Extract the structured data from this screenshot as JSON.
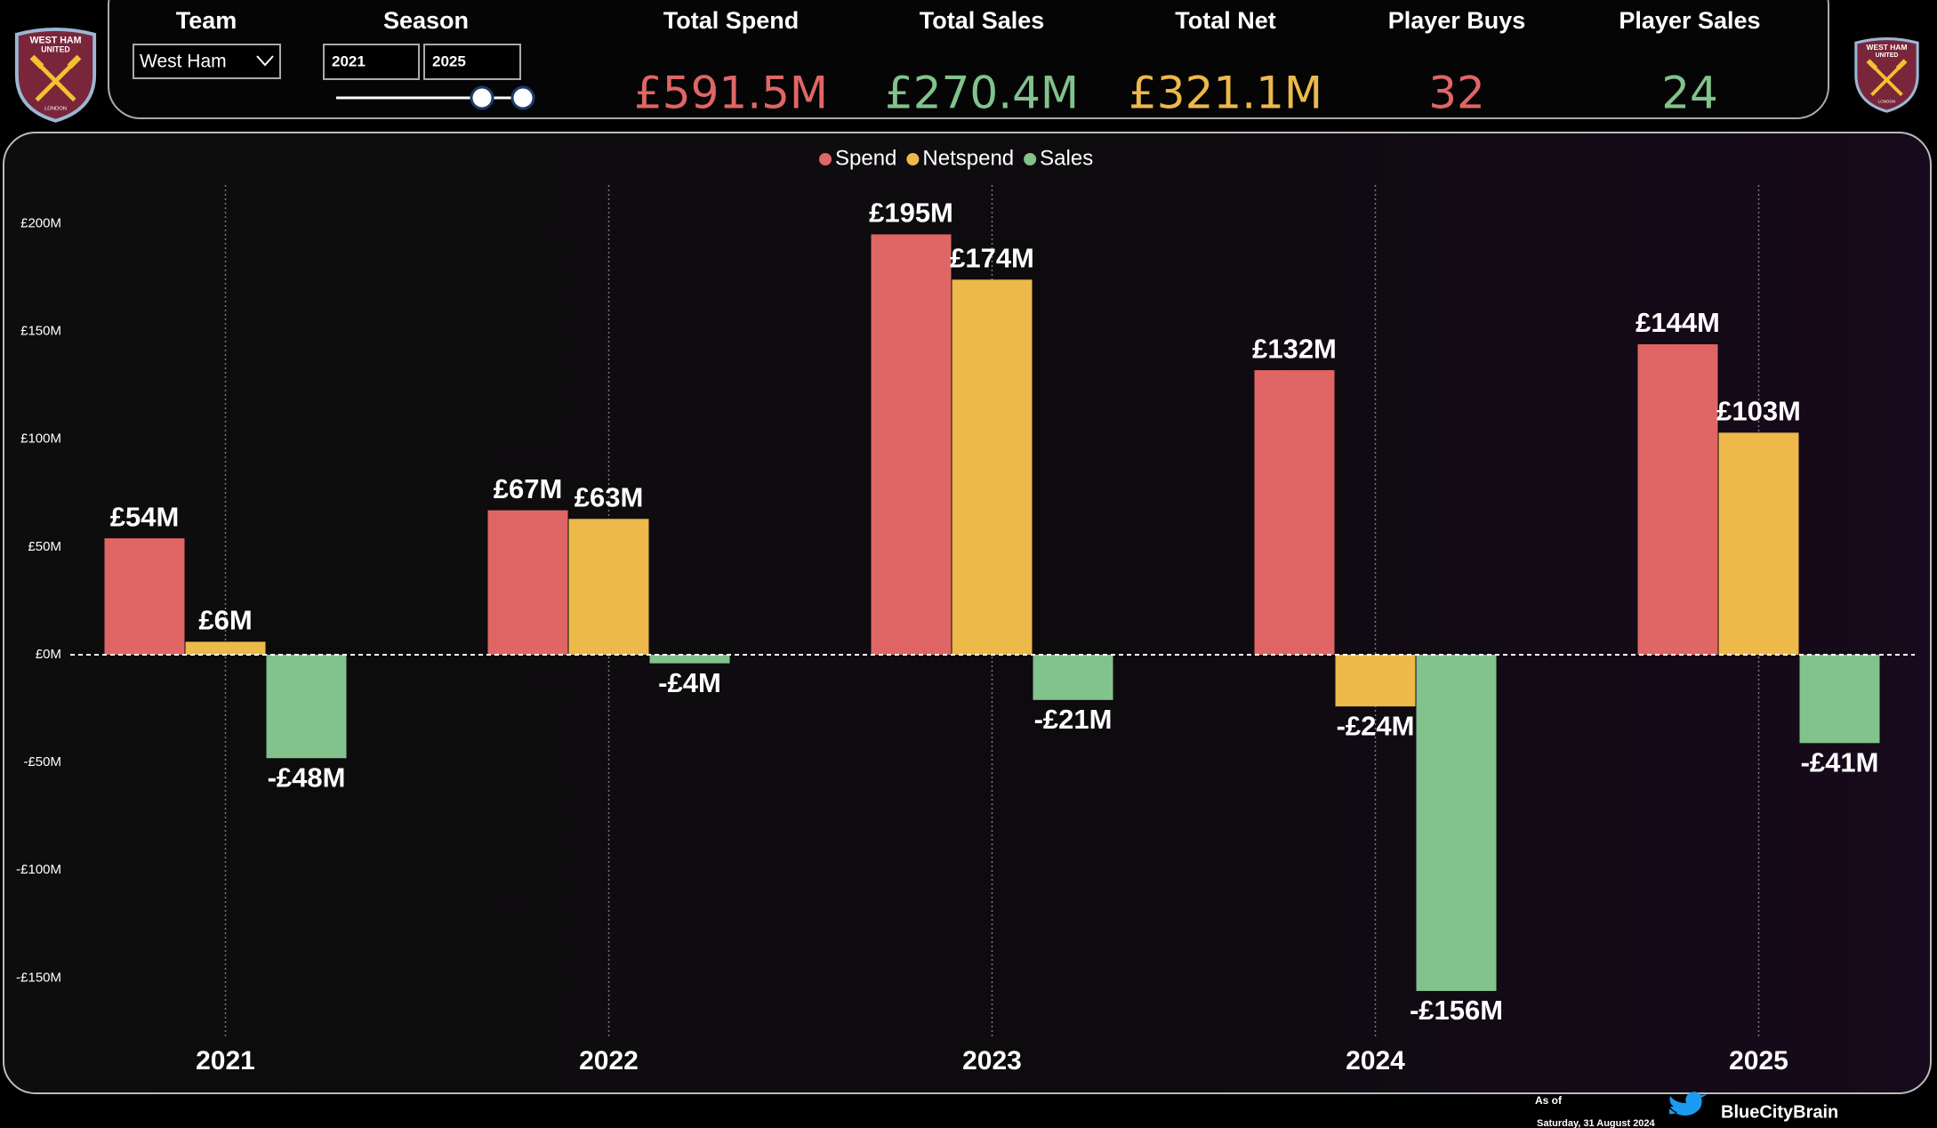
{
  "header": {
    "team_label": "Team",
    "team_value": "West Ham",
    "season_label": "Season",
    "season_start": "2021",
    "season_end": "2025",
    "kpis": [
      {
        "label": "Total Spend",
        "value": "£591.5M",
        "color": "#e06666"
      },
      {
        "label": "Total Sales",
        "value": "£270.4M",
        "color": "#82c28c"
      },
      {
        "label": "Total Net",
        "value": "£321.1M",
        "color": "#ecb94a"
      },
      {
        "label": "Player Buys",
        "value": 32,
        "color": "#e06666"
      },
      {
        "label": "Player Sales",
        "value": 24,
        "color": "#82c28c"
      }
    ]
  },
  "crest": {
    "lines": [
      "WEST HAM",
      "UNITED"
    ],
    "city": "LONDON"
  },
  "chart_data": {
    "type": "bar",
    "legend": "top",
    "categories": [
      "2021",
      "2022",
      "2023",
      "2024",
      "2025"
    ],
    "series": [
      {
        "name": "Spend",
        "color": "#e06666",
        "values": [
          54,
          67,
          195,
          132,
          144
        ],
        "value_labels": [
          "£54M",
          "£67M",
          "£195M",
          "£132M",
          "£144M"
        ]
      },
      {
        "name": "Netspend",
        "color": "#ecb94a",
        "values": [
          6,
          63,
          174,
          -24,
          103
        ],
        "value_labels": [
          "£6M",
          "£63M",
          "£174M",
          "-£24M",
          "£103M"
        ]
      },
      {
        "name": "Sales",
        "color": "#82c28c",
        "values": [
          -48,
          -4,
          -21,
          -156,
          -41
        ],
        "value_labels": [
          "-£48M",
          "-£4M",
          "-£21M",
          "-£156M",
          "-£41M"
        ]
      }
    ],
    "ylim": [
      -175,
      215
    ],
    "yticks": [
      {
        "value": -150,
        "label": "-£150M"
      },
      {
        "value": -100,
        "label": "-£100M"
      },
      {
        "value": -50,
        "label": "-£50M"
      },
      {
        "value": 0,
        "label": "£0M"
      },
      {
        "value": 50,
        "label": "£50M"
      },
      {
        "value": 100,
        "label": "£100M"
      },
      {
        "value": 150,
        "label": "£150M"
      },
      {
        "value": 200,
        "label": "£200M"
      }
    ]
  },
  "footer": {
    "as_of_label": "As of",
    "date": "Saturday, 31 August 2024",
    "handle": "BlueCityBrain"
  }
}
